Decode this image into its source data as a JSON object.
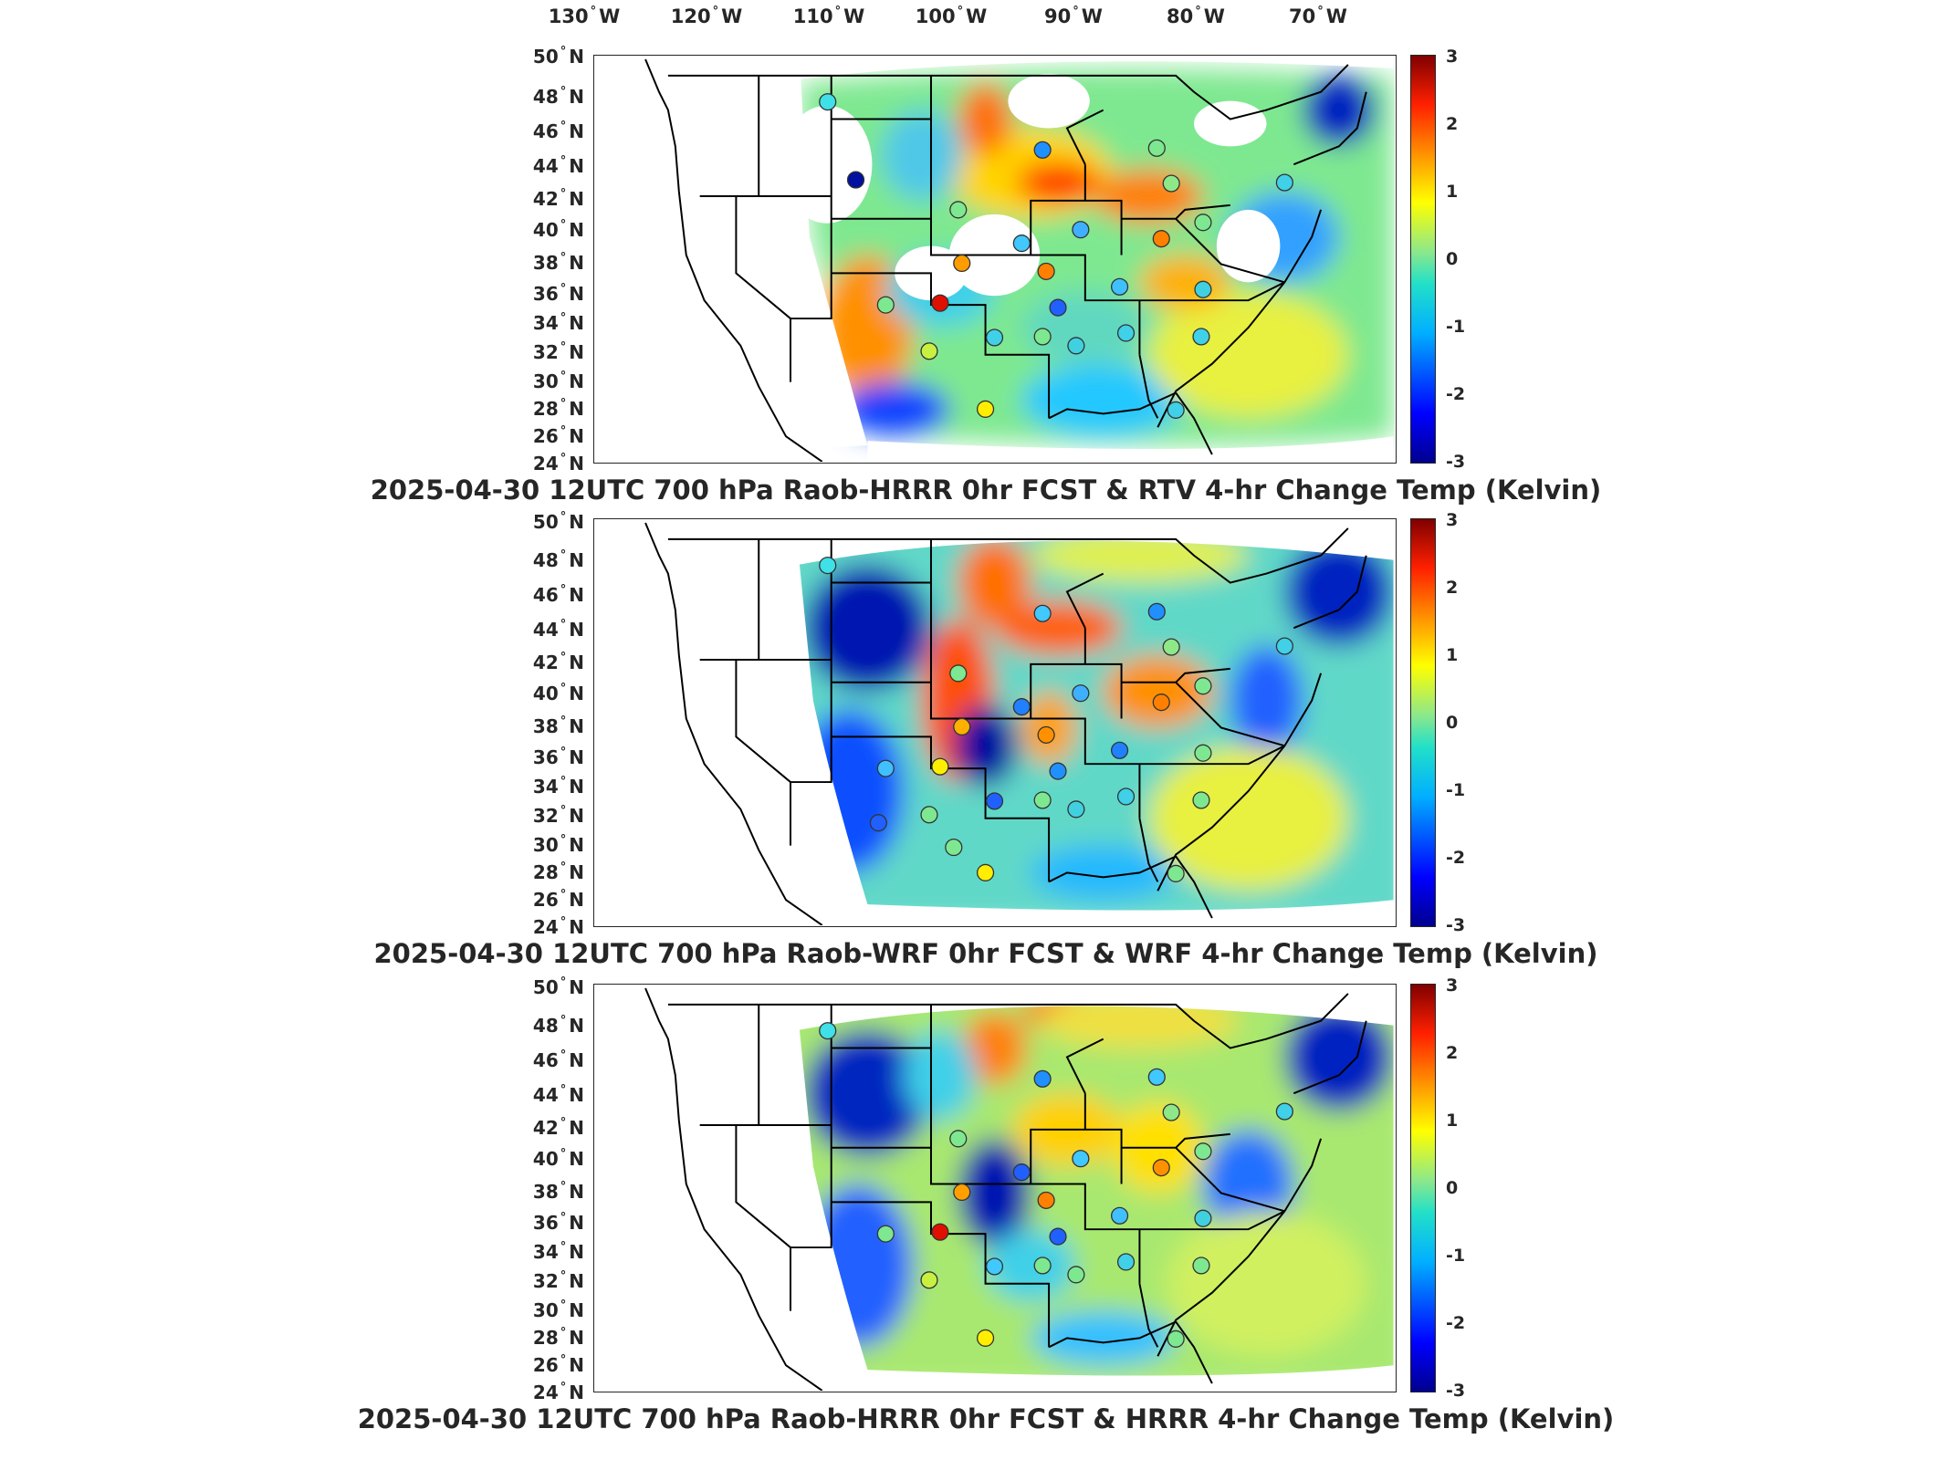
{
  "longitude_labels": [
    {
      "value": "130",
      "hemi": "W"
    },
    {
      "value": "120",
      "hemi": "W"
    },
    {
      "value": "110",
      "hemi": "W"
    },
    {
      "value": "100",
      "hemi": "W"
    },
    {
      "value": "90",
      "hemi": "W"
    },
    {
      "value": "80",
      "hemi": "W"
    },
    {
      "value": "70",
      "hemi": "W"
    }
  ],
  "latitude_labels": [
    {
      "value": "50",
      "hemi": "N"
    },
    {
      "value": "48",
      "hemi": "N"
    },
    {
      "value": "46",
      "hemi": "N"
    },
    {
      "value": "44",
      "hemi": "N"
    },
    {
      "value": "42",
      "hemi": "N"
    },
    {
      "value": "40",
      "hemi": "N"
    },
    {
      "value": "38",
      "hemi": "N"
    },
    {
      "value": "36",
      "hemi": "N"
    },
    {
      "value": "34",
      "hemi": "N"
    },
    {
      "value": "32",
      "hemi": "N"
    },
    {
      "value": "30",
      "hemi": "N"
    },
    {
      "value": "28",
      "hemi": "N"
    },
    {
      "value": "26",
      "hemi": "N"
    },
    {
      "value": "24",
      "hemi": "N"
    }
  ],
  "colorbar": {
    "min": -3,
    "max": 3,
    "ticks": [
      "3",
      "2",
      "1",
      "0",
      "-1",
      "-2",
      "-3"
    ]
  },
  "panels": [
    {
      "title": "2025-04-30 12UTC 700 hPa Raob-HRRR 0hr FCST & RTV 4-hr Change Temp (Kelvin)"
    },
    {
      "title": "2025-04-30 12UTC 700 hPa Raob-WRF 0hr FCST & WRF 4-hr Change Temp (Kelvin)"
    },
    {
      "title": "2025-04-30 12UTC 700 hPa Raob-HRRR 0hr FCST & HRRR 4-hr Change Temp (Kelvin)"
    }
  ],
  "colors": {
    "cold": "#00008f",
    "neutral": "#8ee88a",
    "warm": "#800000",
    "outline": "#000000"
  }
}
